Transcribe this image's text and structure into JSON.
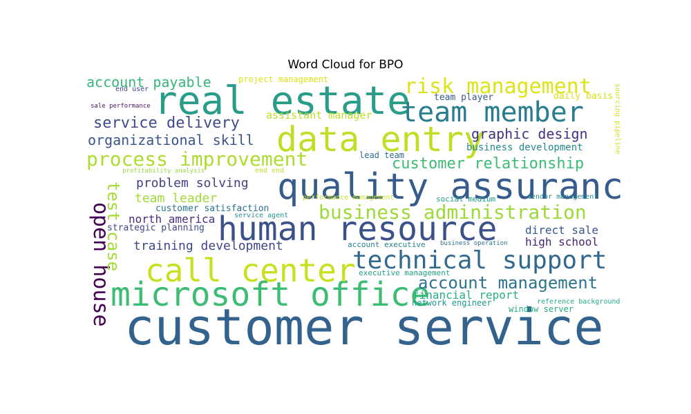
{
  "chart_data": {
    "type": "wordcloud",
    "title": "Word Cloud for BPO",
    "words": [
      {
        "text": "customer service",
        "color": "#33638d"
      },
      {
        "text": "quality assurance",
        "color": "#365c8d"
      },
      {
        "text": "human resource",
        "color": "#3b518b"
      },
      {
        "text": "real estate",
        "color": "#2a9d8a"
      },
      {
        "text": "data entry",
        "color": "#bddf26"
      },
      {
        "text": "microsoft office",
        "color": "#3dbc74"
      },
      {
        "text": "call center",
        "color": "#c8e020"
      },
      {
        "text": "team member",
        "color": "#287d8e"
      },
      {
        "text": "technical support",
        "color": "#31688e"
      },
      {
        "text": "open house",
        "color": "#440154"
      },
      {
        "text": "risk management",
        "color": "#dde318"
      },
      {
        "text": "business administration",
        "color": "#9dd93b"
      },
      {
        "text": "process improvement",
        "color": "#addc30"
      },
      {
        "text": "test case",
        "color": "#a5db36"
      },
      {
        "text": "account management",
        "color": "#2c738e"
      },
      {
        "text": "customer relationship",
        "color": "#3cbb75"
      },
      {
        "text": "service delivery",
        "color": "#3e4a89"
      },
      {
        "text": "organizational skill",
        "color": "#3a548c"
      },
      {
        "text": "graphic design",
        "color": "#46327e"
      },
      {
        "text": "account payable",
        "color": "#35b779"
      },
      {
        "text": "training development",
        "color": "#3f4889"
      },
      {
        "text": "problem solving",
        "color": "#424086"
      },
      {
        "text": "team leader",
        "color": "#a0da39"
      },
      {
        "text": "north america",
        "color": "#472d7b"
      },
      {
        "text": "direct sale",
        "color": "#39568c"
      },
      {
        "text": "high school",
        "color": "#482475"
      },
      {
        "text": "financial report",
        "color": "#27ad81"
      },
      {
        "text": "assistant manager",
        "color": "#bade28"
      },
      {
        "text": "business development",
        "color": "#23898e"
      },
      {
        "text": "customer satisfaction",
        "color": "#2c728e"
      },
      {
        "text": "strategic planning",
        "color": "#404688"
      },
      {
        "text": "team player",
        "color": "#38598c"
      },
      {
        "text": "lead team",
        "color": "#2f6c8e"
      },
      {
        "text": "daily basis",
        "color": "#d8e219"
      },
      {
        "text": "network engineer",
        "color": "#1f978b"
      },
      {
        "text": "window server",
        "color": "#25ab82"
      },
      {
        "text": "account executive",
        "color": "#26828e"
      },
      {
        "text": "executive management",
        "color": "#1fa088"
      },
      {
        "text": "project management",
        "color": "#dde318"
      },
      {
        "text": "social medium",
        "color": "#1f9e89"
      },
      {
        "text": "vendor management",
        "color": "#25848e"
      },
      {
        "text": "performance management",
        "color": "#c2df23"
      },
      {
        "text": "business operation",
        "color": "#2c728e"
      },
      {
        "text": "reference background",
        "color": "#22a884"
      },
      {
        "text": "end user",
        "color": "#414487"
      },
      {
        "text": "sale performance",
        "color": "#471063"
      },
      {
        "text": "profitability analysis",
        "color": "#95d840"
      },
      {
        "text": "end end",
        "color": "#bade28"
      },
      {
        "text": "service agent",
        "color": "#21918c"
      },
      {
        "text": "sourcing pipeline",
        "color": "#d0e11c"
      }
    ]
  }
}
